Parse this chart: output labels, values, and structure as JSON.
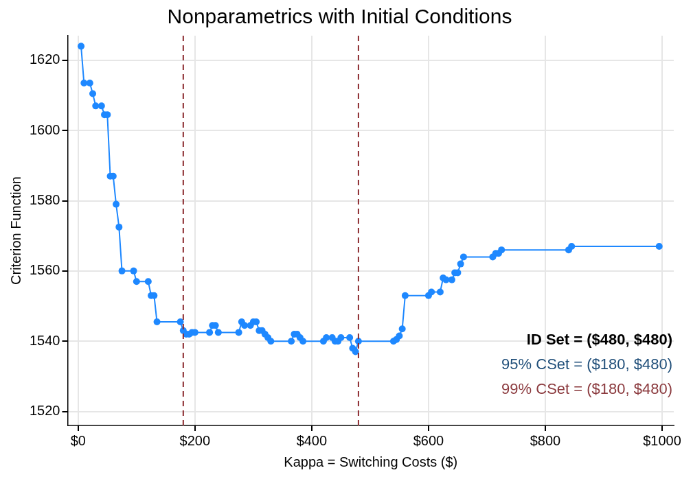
{
  "chart_data": {
    "type": "line",
    "title": "Nonparametrics with Initial Conditions",
    "xlabel": "Kappa = Switching Costs ($)",
    "ylabel": "Criterion Function",
    "x": [
      5,
      10,
      20,
      25,
      30,
      40,
      45,
      50,
      55,
      60,
      65,
      70,
      75,
      95,
      100,
      120,
      125,
      130,
      135,
      175,
      180,
      185,
      190,
      195,
      200,
      225,
      230,
      235,
      240,
      275,
      280,
      285,
      295,
      300,
      305,
      310,
      315,
      320,
      325,
      330,
      365,
      370,
      375,
      380,
      385,
      420,
      425,
      435,
      440,
      445,
      450,
      465,
      470,
      475,
      480,
      540,
      545,
      550,
      555,
      560,
      600,
      605,
      620,
      625,
      630,
      640,
      645,
      650,
      655,
      660,
      710,
      715,
      720,
      725,
      840,
      845,
      995
    ],
    "series": [
      {
        "color": "#1e88ff",
        "values": [
          1624,
          1613.5,
          1613.5,
          1610.5,
          1607,
          1607,
          1604.5,
          1604.5,
          1587,
          1587,
          1579,
          1572.5,
          1560,
          1560,
          1557,
          1557,
          1553,
          1553,
          1545.5,
          1545.5,
          1543,
          1542,
          1542,
          1542.5,
          1542.5,
          1542.5,
          1544.5,
          1544.5,
          1542.5,
          1542.5,
          1545.5,
          1544.5,
          1544.5,
          1545.5,
          1545.5,
          1543,
          1543,
          1542,
          1541,
          1540,
          1540,
          1542,
          1542,
          1541,
          1540,
          1540,
          1541,
          1541,
          1540,
          1540,
          1541,
          1541,
          1538,
          1537,
          1540,
          1540,
          1540.5,
          1541.5,
          1543.5,
          1553,
          1553,
          1554,
          1554,
          1558,
          1557.5,
          1557.5,
          1559.5,
          1559.5,
          1562,
          1564,
          1564,
          1565,
          1565,
          1566,
          1566,
          1567,
          1567
        ]
      }
    ],
    "xlim": [
      -18,
      1020
    ],
    "ylim": [
      1516,
      1627
    ],
    "xticks": [
      {
        "value": 0,
        "label": "$0"
      },
      {
        "value": 200,
        "label": "$200"
      },
      {
        "value": 400,
        "label": "$400"
      },
      {
        "value": 600,
        "label": "$600"
      },
      {
        "value": 800,
        "label": "$800"
      },
      {
        "value": 1000,
        "label": "$1000"
      }
    ],
    "yticks": [
      1520,
      1540,
      1560,
      1580,
      1600,
      1620
    ],
    "grid": true,
    "marker": "circle",
    "line_style": "solid",
    "legend": false,
    "ref_lines": [
      {
        "axis": "x",
        "value": 180,
        "color": "#8b2a2e",
        "line_style": "dashed"
      },
      {
        "axis": "x",
        "value": 480,
        "color": "#8b2a2e",
        "line_style": "dashed"
      }
    ],
    "annotations": [
      "ID Set = ($480, $480)",
      "95% CSet = ($180, $480)",
      "99% CSet = ($180, $480)"
    ]
  }
}
